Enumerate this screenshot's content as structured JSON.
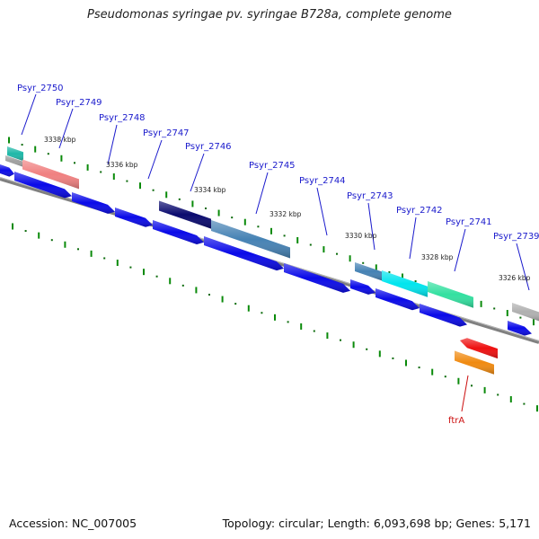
{
  "title": "Pseudomonas syringae pv. syringae B728a, complete genome",
  "footer": {
    "accession": "Accession: NC_007005",
    "summary": "Topology: circular; Length: 6,093,698 bp; Genes: 5,171"
  },
  "colors": {
    "backbone": "#808080",
    "ruler_tick": "#0a8a0a",
    "ruler_dot": "#0a6a0a",
    "cds": "#0a0ae8",
    "label_blue": "#1a1acc",
    "label_red": "#cc1010"
  },
  "scale_labels": [
    "3338 kbp",
    "3336 kbp",
    "3334 kbp",
    "3332 kbp",
    "3330 kbp",
    "3328 kbp",
    "3326 kbp"
  ],
  "gene_labels": [
    {
      "text": "Psyr_2750",
      "color": "blue"
    },
    {
      "text": "Psyr_2749",
      "color": "blue"
    },
    {
      "text": "Psyr_2748",
      "color": "blue"
    },
    {
      "text": "Psyr_2747",
      "color": "blue"
    },
    {
      "text": "Psyr_2746",
      "color": "blue"
    },
    {
      "text": "Psyr_2745",
      "color": "blue"
    },
    {
      "text": "Psyr_2744",
      "color": "blue"
    },
    {
      "text": "Psyr_2743",
      "color": "blue"
    },
    {
      "text": "Psyr_2742",
      "color": "blue"
    },
    {
      "text": "Psyr_2741",
      "color": "blue"
    },
    {
      "text": "Psyr_2739",
      "color": "blue"
    },
    {
      "text": "ftrA",
      "color": "red"
    }
  ],
  "feature_colors": {
    "psyr_2750": "#1fb8a8",
    "psyr_2749": "#f08080",
    "psyr_2746": "#0a0a6e",
    "psyr_2745": "#4682b4",
    "psyr_2743": "#4682b4",
    "psyr_2742": "#00e5ee",
    "psyr_2741": "#33e0a0",
    "psyr_2739": "#b0b0b0",
    "ftra_upper": "#ee1010",
    "ftra_lower": "#f08a10"
  }
}
